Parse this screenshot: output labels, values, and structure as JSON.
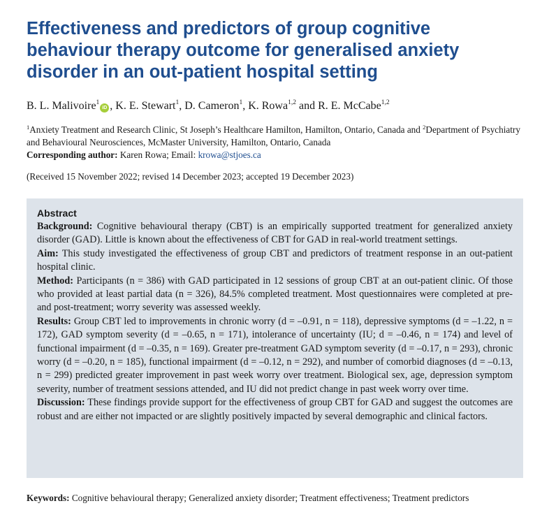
{
  "title": "Effectiveness and predictors of group cognitive behaviour therapy outcome for generalised anxiety disorder in an out-patient hospital setting",
  "authors": [
    {
      "name": "B. L. Malivoire",
      "sup": "1",
      "orcid": true,
      "sep": ", "
    },
    {
      "name": "K. E. Stewart",
      "sup": "1",
      "sep": ", "
    },
    {
      "name": "D. Cameron",
      "sup": "1",
      "sep": ", "
    },
    {
      "name": "K. Rowa",
      "sup": "1,2",
      "sep": " and "
    },
    {
      "name": "R. E. McCabe",
      "sup": "1,2",
      "sep": ""
    }
  ],
  "orcid_icon": "iD",
  "affiliations": {
    "sup1": "1",
    "text1": "Anxiety Treatment and Research Clinic, St Joseph’s Healthcare Hamilton, Hamilton, Ontario, Canada and ",
    "sup2": "2",
    "text2": "Department of Psychiatry and Behavioural Neurosciences, McMaster University, Hamilton, Ontario, Canada"
  },
  "corresponding": {
    "label": "Corresponding author:",
    "name": " Karen Rowa; Email: ",
    "email": "krowa@stjoes.ca"
  },
  "received": "(Received 15 November 2022; revised 14 December 2023; accepted 19 December 2023)",
  "abstract": {
    "heading": "Abstract",
    "sections": [
      {
        "label": "Background:",
        "text": " Cognitive behavioural therapy (CBT) is an empirically supported treatment for generalized anxiety disorder (GAD). Little is known about the effectiveness of CBT for GAD in real-world treatment settings."
      },
      {
        "label": "Aim:",
        "text": " This study investigated the effectiveness of group CBT and predictors of treatment response in an out-patient hospital clinic."
      },
      {
        "label": "Method:",
        "text": " Participants (n = 386) with GAD participated in 12 sessions of group CBT at an out-patient clinic. Of those who provided at least partial data (n = 326), 84.5% completed treatment. Most questionnaires were completed at pre- and post-treatment; worry severity was assessed weekly."
      },
      {
        "label": "Results:",
        "text": " Group CBT led to improvements in chronic worry (d = –0.91, n = 118), depressive symptoms (d = –1.22, n = 172), GAD symptom severity (d = –0.65, n = 171), intolerance of uncertainty (IU; d = –0.46, n = 174) and level of functional impairment (d = –0.35, n = 169). Greater pre-treatment GAD symptom severity (d = –0.17, n = 293), chronic worry (d = –0.20, n = 185), functional impairment (d = –0.12, n = 292), and number of comorbid diagnoses (d = –0.13, n = 299) predicted greater improvement in past week worry over treatment. Biological sex, age, depression symptom severity, number of treatment sessions attended, and IU did not predict change in past week worry over time."
      },
      {
        "label": "Discussion:",
        "text": " These findings provide support for the effectiveness of group CBT for GAD and suggest the outcomes are robust and are either not impacted or are slightly positively impacted by several demographic and clinical factors."
      }
    ]
  },
  "keywords": {
    "label": "Keywords:",
    "text": " Cognitive behavioural therapy; Generalized anxiety disorder; Treatment effectiveness; Treatment predictors"
  }
}
